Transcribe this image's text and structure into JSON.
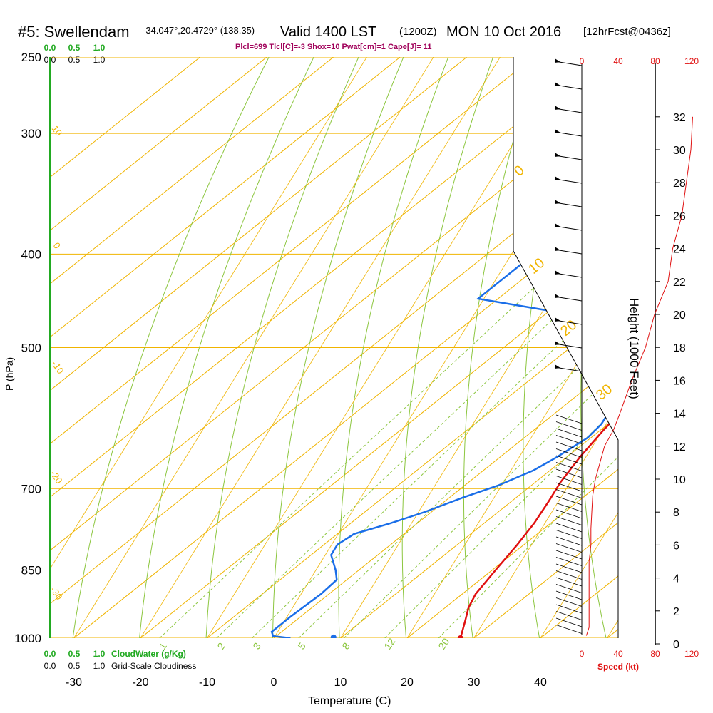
{
  "header": {
    "station": "#5: Swellendam",
    "coords": "-34.047°,20.4729° (138,35)",
    "valid": "Valid 1400 LST",
    "zulu": "(1200Z)",
    "date": "MON 10 Oct 2016",
    "forecast": "[12hrFcst@0436z]",
    "indices": "Plcl=699 Tlcl[C]=-3 Shox=10 Pwat[cm]=1 Cape[J]= 11"
  },
  "colors": {
    "isotherm": "#f0b400",
    "dry_adiabat": "#8cc63f",
    "mixing_ratio": "#8cc63f",
    "temperature": "#e01010",
    "dewpoint": "#1a6ee8",
    "cloud": "#22aa22",
    "speed": "#e01010",
    "indices": "#a0005a"
  },
  "axes": {
    "xlabel": "Temperature (C)",
    "ylabel": "P (hPa)",
    "height_label": "Height (1000 Feet)",
    "speed_label": "Speed (kt)",
    "xticks": [
      "-30",
      "-20",
      "-10",
      "0",
      "10",
      "20",
      "30",
      "40"
    ],
    "yticks": [
      "250",
      "300",
      "400",
      "500",
      "700",
      "850",
      "1000"
    ],
    "height_ticks": [
      "0",
      "2",
      "4",
      "6",
      "8",
      "10",
      "12",
      "14",
      "16",
      "18",
      "20",
      "22",
      "24",
      "26",
      "28",
      "30",
      "32"
    ],
    "speed_ticks": [
      "0",
      "40",
      "80",
      "120"
    ],
    "cloudwater_ticks": [
      "0.0",
      "0.5",
      "1.0"
    ],
    "cloudiness_ticks": [
      "0.0",
      "0.5",
      "1.0"
    ],
    "cloudwater_label": "CloudWater (g/Kg)",
    "cloudiness_label": "Grid-Scale Cloudiness"
  },
  "chart_data": {
    "type": "line",
    "title": "#5: Swellendam",
    "xlim": [
      -33,
      36
    ],
    "ylim": [
      1000,
      250
    ],
    "y_scale": "log-pressure",
    "isotherm_labels": [
      "0",
      "10",
      "20",
      "30"
    ],
    "isotherm_labels_left": [
      "10",
      "0",
      "-10",
      "-20",
      "-30"
    ],
    "dry_adiabat_labels": [
      "0",
      "10",
      "20",
      "30"
    ],
    "mixing_ratio_labels": [
      "1",
      "2",
      "3",
      "5",
      "8",
      "12",
      "20"
    ],
    "series": [
      {
        "name": "temperature",
        "points": [
          [
            28,
            1000
          ],
          [
            25.5,
            960
          ],
          [
            23.5,
            930
          ],
          [
            22,
            900
          ],
          [
            20.5,
            850
          ],
          [
            19,
            800
          ],
          [
            17.5,
            760
          ],
          [
            15.5,
            720
          ],
          [
            13.8,
            690
          ],
          [
            12,
            650
          ],
          [
            10.5,
            610
          ],
          [
            9.5,
            580
          ],
          [
            9.2,
            560
          ],
          [
            9,
            530
          ],
          [
            8.5,
            500
          ],
          [
            7.5,
            470
          ],
          [
            6.7,
            450
          ],
          [
            5.7,
            420
          ],
          [
            4.8,
            400
          ],
          [
            3.8,
            380
          ],
          [
            2.5,
            355
          ],
          [
            1.5,
            335
          ],
          [
            0.5,
            315
          ],
          [
            -0.5,
            295
          ],
          [
            -1.3,
            280
          ],
          [
            -2,
            265
          ]
        ]
      },
      {
        "name": "dewpoint",
        "points": [
          [
            2.5,
            1000
          ],
          [
            -0.5,
            995
          ],
          [
            -1.5,
            985
          ],
          [
            -1.5,
            950
          ],
          [
            -1.2,
            900
          ],
          [
            -1.5,
            870
          ],
          [
            -3.5,
            850
          ],
          [
            -7,
            820
          ],
          [
            -8,
            800
          ],
          [
            -7.5,
            780
          ],
          [
            -4,
            760
          ],
          [
            -1,
            740
          ],
          [
            2,
            715
          ],
          [
            5,
            695
          ],
          [
            7.5,
            670
          ],
          [
            8.5,
            650
          ],
          [
            9.5,
            620
          ],
          [
            9,
            600
          ],
          [
            8,
            585
          ],
          [
            5,
            555
          ],
          [
            3,
            535
          ],
          [
            -2,
            510
          ],
          [
            -5,
            495
          ],
          [
            -10,
            480
          ],
          [
            -18,
            460
          ],
          [
            -33,
            445
          ],
          [
            -33,
            440
          ],
          [
            -33,
            400
          ],
          [
            -27,
            395
          ],
          [
            -20,
            380
          ],
          [
            -16,
            370
          ],
          [
            -13,
            355
          ],
          [
            -11,
            345
          ],
          [
            -9.5,
            330
          ],
          [
            -9,
            315
          ],
          [
            -8.5,
            300
          ],
          [
            -8.5,
            285
          ],
          [
            -8.5,
            265
          ]
        ]
      }
    ],
    "surface_dewpoint_marker": [
      8.8,
      998
    ],
    "wind_speed_profile": [
      [
        5,
        0.5
      ],
      [
        8,
        1
      ],
      [
        8,
        2
      ],
      [
        8,
        4
      ],
      [
        8,
        5
      ],
      [
        10,
        6
      ],
      [
        10,
        7
      ],
      [
        11,
        8
      ],
      [
        12,
        9
      ],
      [
        15,
        10
      ],
      [
        20,
        11
      ],
      [
        25,
        12
      ],
      [
        35,
        13
      ],
      [
        42,
        14
      ],
      [
        55,
        16
      ],
      [
        70,
        18
      ],
      [
        80,
        20
      ],
      [
        95,
        22
      ],
      [
        100,
        24
      ],
      [
        110,
        26
      ],
      [
        115,
        28
      ],
      [
        120,
        30
      ],
      [
        122,
        32
      ]
    ]
  }
}
